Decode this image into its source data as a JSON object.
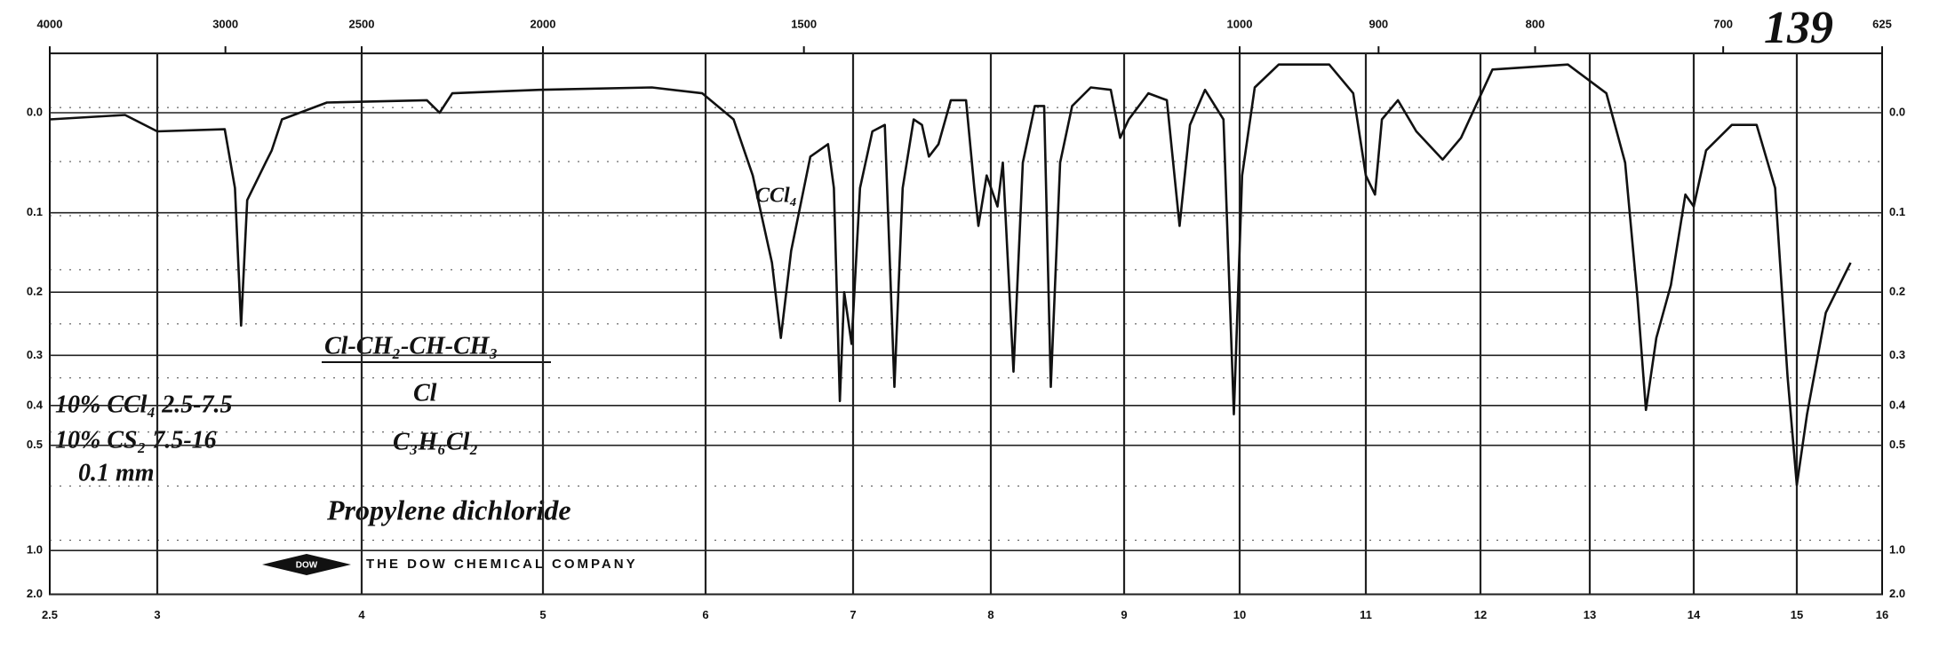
{
  "chart_data": {
    "type": "line",
    "x": [
      2.5,
      2.85,
      3.0,
      3.33,
      3.38,
      3.41,
      3.44,
      3.53,
      3.56,
      3.61,
      3.83,
      4.36,
      4.43,
      4.5,
      4.98,
      5.67,
      5.98,
      6.19,
      6.32,
      6.45,
      6.51,
      6.58,
      6.71,
      6.83,
      6.87,
      6.91,
      6.94,
      6.99,
      7.05,
      7.14,
      7.23,
      7.3,
      7.36,
      7.44,
      7.5,
      7.55,
      7.62,
      7.71,
      7.82,
      7.88,
      7.91,
      7.97,
      8.05,
      8.09,
      8.17,
      8.24,
      8.33,
      8.4,
      8.45,
      8.52,
      8.61,
      8.75,
      8.9,
      8.97,
      9.04,
      9.21,
      9.37,
      9.48,
      9.57,
      9.7,
      9.86,
      9.95,
      10.02,
      10.12,
      10.31,
      10.71,
      10.9,
      11.0,
      11.08,
      11.14,
      11.28,
      11.44,
      11.67,
      11.83,
      12.11,
      12.8,
      13.16,
      13.34,
      13.46,
      13.54,
      13.64,
      13.78,
      13.92,
      14.0,
      14.12,
      14.37,
      14.61,
      14.79,
      14.91,
      15.0,
      15.12,
      15.34,
      15.63
    ],
    "series": [
      {
        "color": "#111111",
        "values": [
          0.006,
          0.002,
          0.017,
          0.015,
          0.073,
          0.25,
          0.086,
          0.047,
          0.035,
          0.006,
          -0.009,
          -0.011,
          0,
          -0.017,
          -0.02,
          -0.022,
          -0.017,
          0.006,
          0.06,
          0.16,
          0.27,
          0.145,
          0.041,
          0.029,
          0.073,
          0.39,
          0.2,
          0.28,
          0.073,
          0.017,
          0.011,
          0.36,
          0.073,
          0.006,
          0.011,
          0.041,
          0.029,
          -0.011,
          -0.011,
          0.073,
          0.115,
          0.06,
          0.093,
          0.047,
          0.33,
          0.047,
          -0.006,
          -0.006,
          0.36,
          0.047,
          -0.006,
          -0.022,
          -0.02,
          0.023,
          0.006,
          -0.017,
          -0.011,
          0.115,
          0.011,
          -0.02,
          0.006,
          0.42,
          0.06,
          -0.022,
          -0.041,
          -0.041,
          -0.017,
          0.06,
          0.08,
          0.006,
          -0.011,
          0.017,
          0.044,
          0.023,
          -0.037,
          -0.041,
          -0.017,
          0.047,
          0.21,
          0.41,
          0.27,
          0.19,
          0.08,
          0.093,
          0.035,
          0.011,
          0.011,
          0.073,
          0.34,
          0.63,
          0.42,
          0.23,
          0.16
        ]
      }
    ],
    "xlim": [
      2.5,
      16
    ],
    "xticks": [
      2.5,
      3,
      4,
      5,
      6,
      7,
      8,
      9,
      10,
      11,
      12,
      13,
      14,
      15,
      16
    ],
    "x2ticks": [
      4000,
      3000,
      2500,
      2000,
      1500,
      1000,
      900,
      800,
      700,
      625
    ],
    "ylim": [
      -0.05,
      2
    ],
    "yticks": [
      {
        "value": 0,
        "label": "0.0"
      },
      0.1,
      0.2,
      0.3,
      0.4,
      0.5,
      {
        "value": 1,
        "label": "1.0"
      },
      {
        "value": 2,
        "label": "2.0"
      }
    ],
    "grid": true,
    "annotations": [
      "139",
      "Cl-CH₂-CH-CH₃",
      "Cl",
      "10% CCl₄ 2.5-7.5",
      "10% CS₂ 7.5-16",
      "0.1 mm",
      "C₃H₆Cl₂",
      "Propylene dichloride",
      "CCl₄",
      "THE DOW CHEMICAL COMPANY",
      "DOW"
    ]
  }
}
